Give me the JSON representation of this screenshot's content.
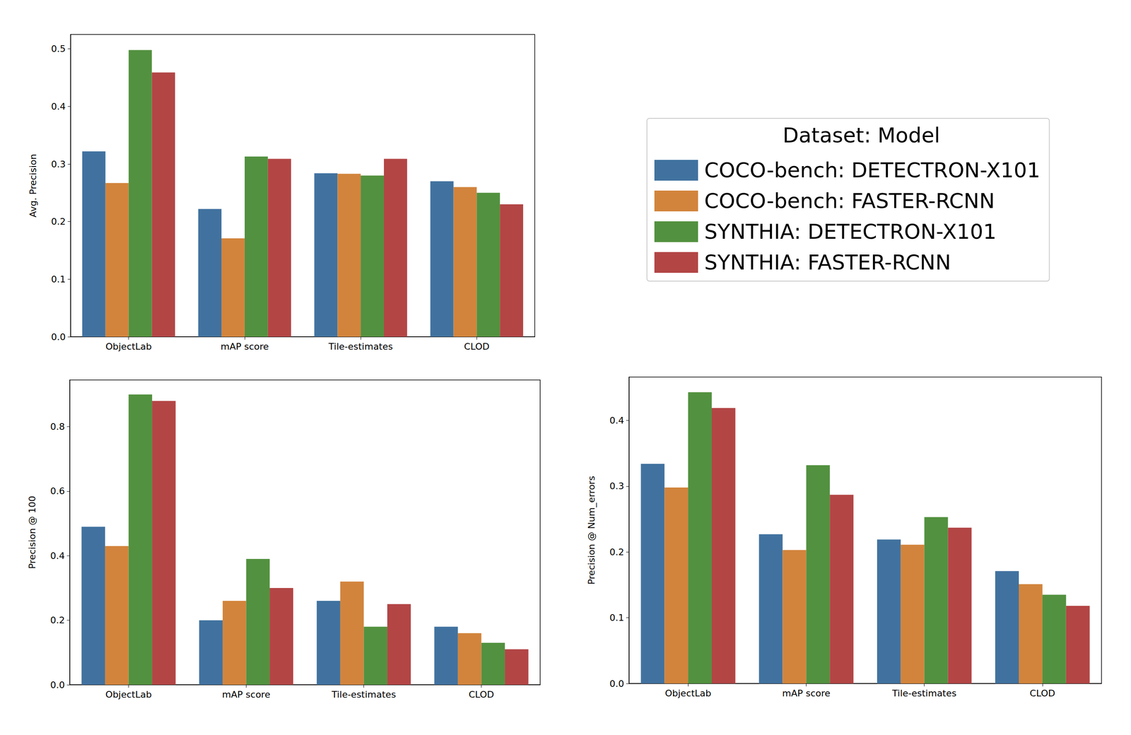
{
  "chart_data": [
    {
      "type": "bar",
      "ylabel": "Avg. Precision",
      "categories": [
        "ObjectLab",
        "mAP score",
        "Tile-estimates",
        "CLOD"
      ],
      "ylim": [
        0,
        0.525
      ],
      "yticks": [
        {
          "value": 0,
          "label": "0.0"
        },
        0.1,
        0.2,
        0.3,
        0.4,
        0.5
      ],
      "legend": "right",
      "legend_title": "Dataset: Model",
      "series": [
        {
          "name": "COCO-bench: DETECTRON-X101",
          "color": "#41729f",
          "values": [
            0.322,
            0.222,
            0.284,
            0.27
          ]
        },
        {
          "name": "COCO-bench: FASTER-RCNN",
          "color": "#d2843c",
          "values": [
            0.267,
            0.171,
            0.283,
            0.26
          ]
        },
        {
          "name": "SYNTHIA: DETECTRON-X101",
          "color": "#52913f",
          "values": [
            0.498,
            0.313,
            0.28,
            0.25
          ]
        },
        {
          "name": "SYNTHIA: FASTER-RCNN",
          "color": "#b34545",
          "values": [
            0.459,
            0.309,
            0.309,
            0.23
          ]
        }
      ]
    },
    {
      "type": "bar",
      "ylabel": "Precision @ 100",
      "categories": [
        "ObjectLab",
        "mAP score",
        "Tile-estimates",
        "CLOD"
      ],
      "ylim": [
        0,
        0.945
      ],
      "yticks": [
        {
          "value": 0,
          "label": "0.0"
        },
        0.2,
        0.4,
        0.6,
        0.8
      ],
      "series": [
        {
          "name": "COCO-bench: DETECTRON-X101",
          "color": "#41729f",
          "values": [
            0.49,
            0.2,
            0.26,
            0.18
          ]
        },
        {
          "name": "COCO-bench: FASTER-RCNN",
          "color": "#d2843c",
          "values": [
            0.43,
            0.26,
            0.32,
            0.16
          ]
        },
        {
          "name": "SYNTHIA: DETECTRON-X101",
          "color": "#52913f",
          "values": [
            0.9,
            0.39,
            0.18,
            0.13
          ]
        },
        {
          "name": "SYNTHIA: FASTER-RCNN",
          "color": "#b34545",
          "values": [
            0.88,
            0.3,
            0.25,
            0.11
          ]
        }
      ]
    },
    {
      "type": "bar",
      "ylabel": "Precision @ Num_errors",
      "categories": [
        "ObjectLab",
        "mAP score",
        "Tile-estimates",
        "CLOD"
      ],
      "ylim": [
        0,
        0.466
      ],
      "yticks": [
        {
          "value": 0,
          "label": "0.0"
        },
        0.1,
        0.2,
        0.3,
        0.4
      ],
      "series": [
        {
          "name": "COCO-bench: DETECTRON-X101",
          "color": "#41729f",
          "values": [
            0.334,
            0.227,
            0.219,
            0.171
          ]
        },
        {
          "name": "COCO-bench: FASTER-RCNN",
          "color": "#d2843c",
          "values": [
            0.298,
            0.203,
            0.211,
            0.151
          ]
        },
        {
          "name": "SYNTHIA: DETECTRON-X101",
          "color": "#52913f",
          "values": [
            0.443,
            0.332,
            0.253,
            0.135
          ]
        },
        {
          "name": "SYNTHIA: FASTER-RCNN",
          "color": "#b34545",
          "values": [
            0.419,
            0.287,
            0.237,
            0.118
          ]
        }
      ]
    }
  ]
}
